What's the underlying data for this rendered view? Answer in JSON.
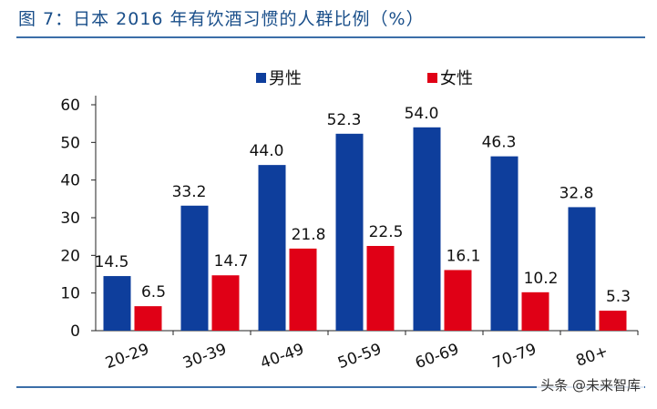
{
  "figure": {
    "title": "图 7：日本 2016 年有饮酒习惯的人群比例（%）",
    "watermark": "头条 @未来智库"
  },
  "colors": {
    "male": "#0e3e9c",
    "female": "#e00016",
    "rule": "#3b6ea8",
    "title": "#1a4f8a"
  },
  "chart_data": {
    "type": "bar",
    "categories": [
      "20-29",
      "30-39",
      "40-49",
      "50-59",
      "60-69",
      "70-79",
      "80+"
    ],
    "series": [
      {
        "name": "男性",
        "values": [
          14.5,
          33.2,
          44.0,
          52.3,
          54.0,
          46.3,
          32.8
        ]
      },
      {
        "name": "女性",
        "values": [
          6.5,
          14.7,
          21.8,
          22.5,
          16.1,
          10.2,
          5.3
        ]
      }
    ],
    "ylim": [
      0,
      60
    ],
    "yticks": [
      0,
      10,
      20,
      30,
      40,
      50,
      60
    ],
    "grid": false,
    "legend": "top-center",
    "data_labels": true
  }
}
